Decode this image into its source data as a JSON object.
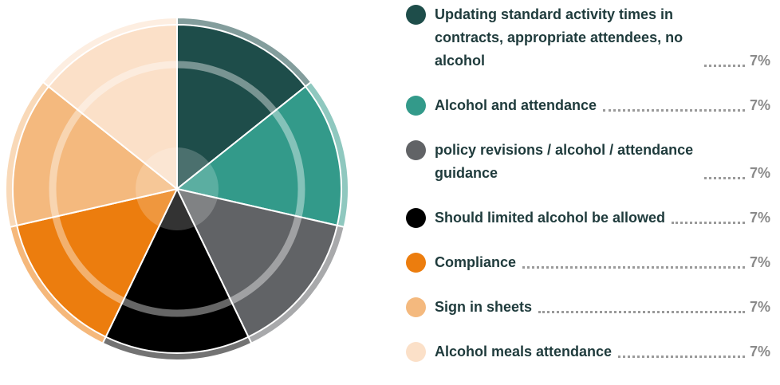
{
  "chart_data": {
    "type": "pie",
    "categories": [
      "Updating standard activity times in contracts, appropriate attendees, no alcohol",
      "Alcohol and attendance",
      "policy revisions / alcohol / attendance guidance",
      "Should limited alcohol be allowed",
      "Compliance",
      "Sign in sheets",
      "Alcohol meals attendance"
    ],
    "values": [
      7,
      7,
      7,
      7,
      7,
      7,
      7
    ],
    "value_labels": [
      "7%",
      "7%",
      "7%",
      "7%",
      "7%",
      "7%",
      "7%"
    ],
    "colors": [
      "#1e4d4a",
      "#339a8a",
      "#616366",
      "#000000",
      "#ec7d0e",
      "#f4b97e",
      "#fbe0c8"
    ]
  }
}
